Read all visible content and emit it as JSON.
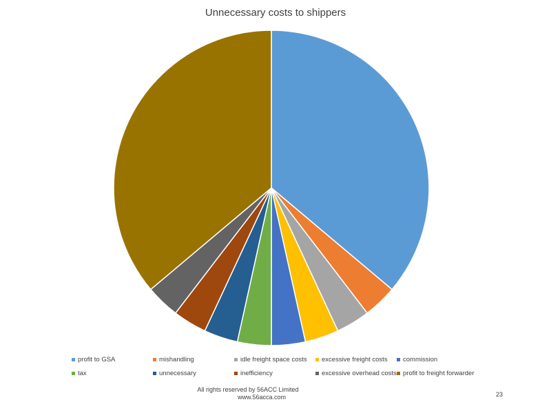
{
  "chart_data": {
    "type": "pie",
    "title": "Unnecessary costs to shippers",
    "legend_position": "bottom",
    "slices": [
      {
        "label": "profit to GSA",
        "value": 36.5,
        "color": "#5B9BD5"
      },
      {
        "label": "mishandling",
        "value": 3.5,
        "color": "#ED7D31"
      },
      {
        "label": "idle freight space costs",
        "value": 3.5,
        "color": "#A5A5A5"
      },
      {
        "label": "excessive freight  costs",
        "value": 3.5,
        "color": "#FFC000"
      },
      {
        "label": "commission",
        "value": 3.5,
        "color": "#4472C4"
      },
      {
        "label": "tax",
        "value": 3.5,
        "color": "#70AD47"
      },
      {
        "label": "unnecessary",
        "value": 3.5,
        "color": "#255E91"
      },
      {
        "label": "inefficiency",
        "value": 3.5,
        "color": "#9E480E"
      },
      {
        "label": "excessive overhead costs",
        "value": 3.5,
        "color": "#636363"
      },
      {
        "label": "profit to freight forwarder",
        "value": 36.5,
        "color": "#997300"
      }
    ]
  },
  "footer": {
    "rights": "All rights reserved by 56ACC Limited",
    "website": "www.56acca.com"
  },
  "page_number": "23"
}
